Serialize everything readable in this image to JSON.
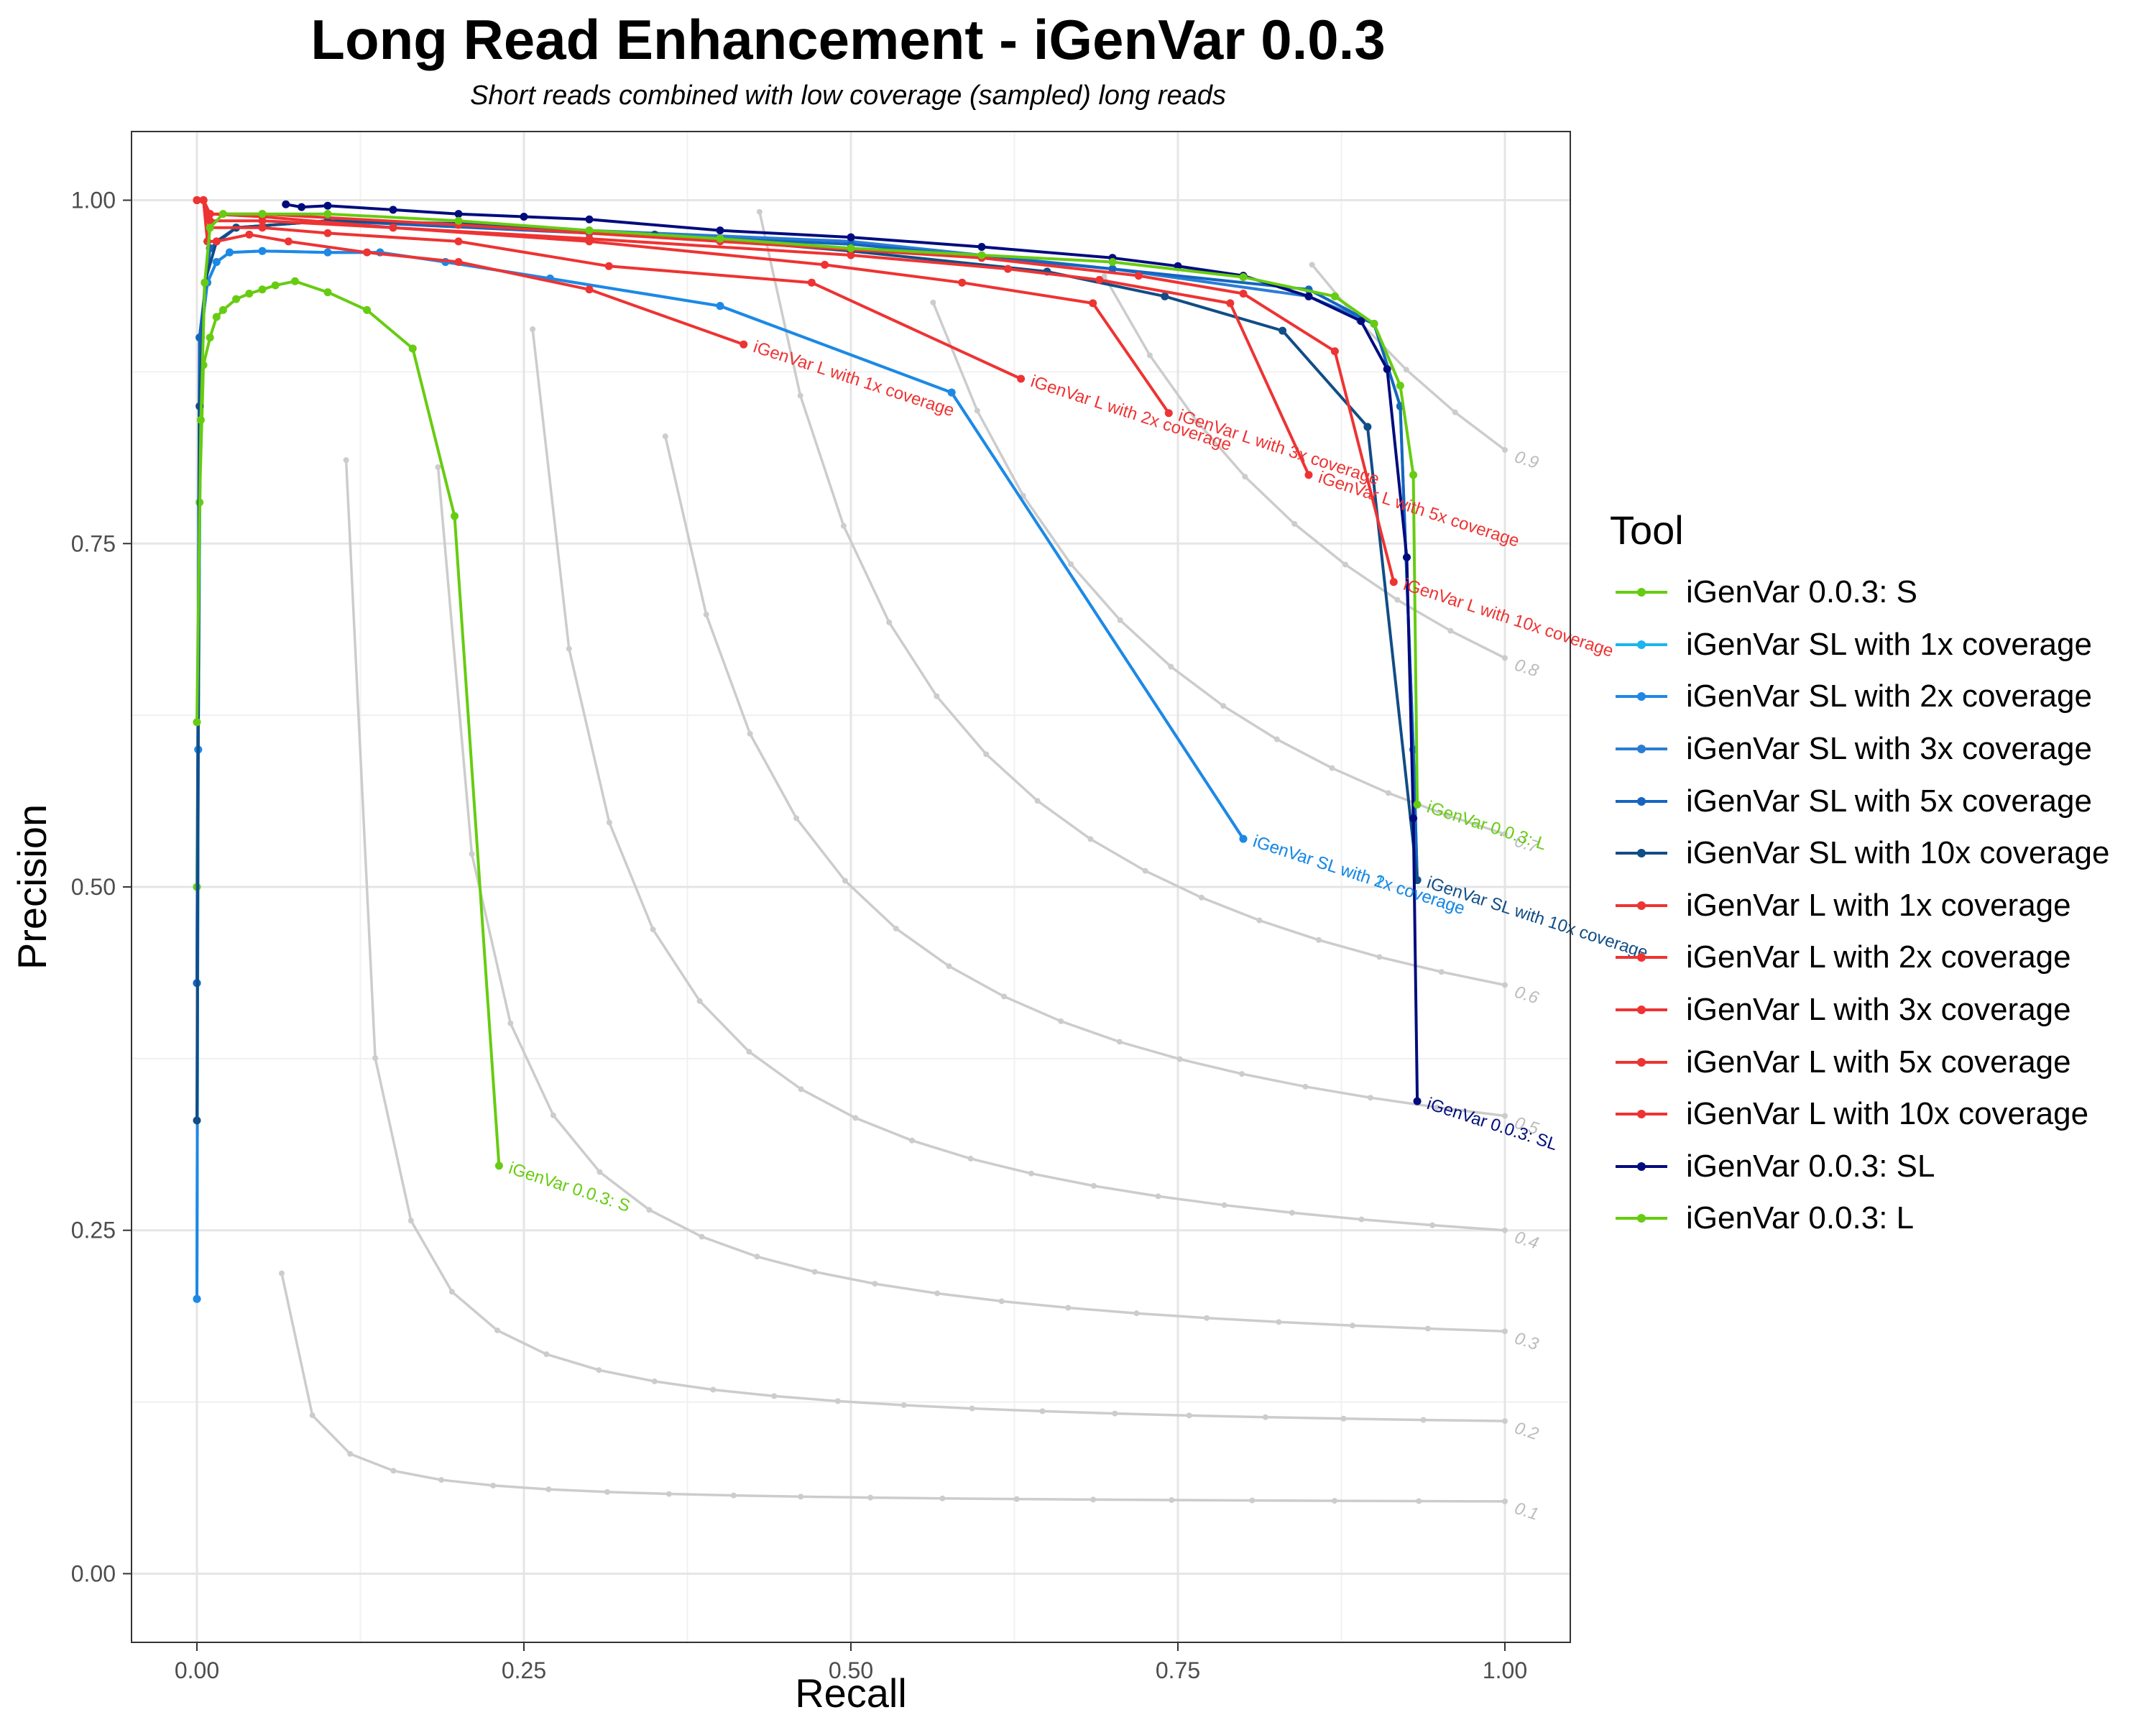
{
  "chart_data": {
    "type": "line",
    "title": "Long Read Enhancement - iGenVar 0.0.3",
    "subtitle": "Short reads combined with low coverage (sampled) long reads",
    "xlabel": "Recall",
    "ylabel": "Precision",
    "xlim": [
      -0.05,
      1.05
    ],
    "ylim": [
      -0.05,
      1.05
    ],
    "x_ticks": [
      "0.00",
      "0.25",
      "0.50",
      "0.75",
      "1.00"
    ],
    "y_ticks": [
      "0.00",
      "0.25",
      "0.50",
      "0.75",
      "1.00"
    ],
    "grid": true,
    "legend_title": "Tool",
    "legend_position": "right",
    "f_contours": [
      {
        "label": "0.1",
        "f": 0.1
      },
      {
        "label": "0.2",
        "f": 0.2
      },
      {
        "label": "0.3",
        "f": 0.3
      },
      {
        "label": "0.4",
        "f": 0.4
      },
      {
        "label": "0.5",
        "f": 0.5
      },
      {
        "label": "0.6",
        "f": 0.6
      },
      {
        "label": "0.7",
        "f": 0.7
      },
      {
        "label": "0.8",
        "f": 0.8
      },
      {
        "label": "0.9",
        "f": 0.9
      }
    ],
    "series": [
      {
        "name": "iGenVar 0.0.3: S",
        "color": "#66CC11",
        "end_label": "iGenVar 0.0.3: S",
        "points": [
          [
            0.0,
            0.5
          ],
          [
            0.002,
            0.78
          ],
          [
            0.005,
            0.88
          ],
          [
            0.01,
            0.9
          ],
          [
            0.015,
            0.915
          ],
          [
            0.02,
            0.92
          ],
          [
            0.03,
            0.928
          ],
          [
            0.04,
            0.932
          ],
          [
            0.05,
            0.935
          ],
          [
            0.06,
            0.938
          ],
          [
            0.075,
            0.941
          ],
          [
            0.1,
            0.933
          ],
          [
            0.13,
            0.92
          ],
          [
            0.165,
            0.892
          ],
          [
            0.197,
            0.77
          ],
          [
            0.231,
            0.297
          ]
        ]
      },
      {
        "name": "iGenVar SL with 1x coverage",
        "color": "#1BB5F0",
        "end_label": "iGenVar SL with 1x coverage",
        "points": [
          [
            0.0,
            0.2
          ],
          [
            0.001,
            0.6
          ],
          [
            0.003,
            0.9
          ],
          [
            0.008,
            0.94
          ],
          [
            0.015,
            0.955
          ],
          [
            0.025,
            0.962
          ],
          [
            0.05,
            0.963
          ],
          [
            0.1,
            0.962
          ],
          [
            0.14,
            0.962
          ],
          [
            0.19,
            0.955
          ],
          [
            0.27,
            0.943
          ],
          [
            0.4,
            0.923
          ],
          [
            0.577,
            0.86
          ],
          [
            0.8,
            0.535
          ]
        ]
      },
      {
        "name": "iGenVar SL with 2x coverage",
        "color": "#1E88E5",
        "end_label": "iGenVar SL with 2x coverage",
        "points": [
          [
            0.0,
            0.2
          ],
          [
            0.001,
            0.6
          ],
          [
            0.003,
            0.9
          ],
          [
            0.008,
            0.94
          ],
          [
            0.015,
            0.955
          ],
          [
            0.025,
            0.962
          ],
          [
            0.05,
            0.963
          ],
          [
            0.1,
            0.962
          ],
          [
            0.14,
            0.962
          ],
          [
            0.19,
            0.955
          ],
          [
            0.27,
            0.943
          ],
          [
            0.4,
            0.923
          ],
          [
            0.577,
            0.86
          ],
          [
            0.8,
            0.535
          ]
        ]
      },
      {
        "name": "iGenVar SL with 3x coverage",
        "color": "#2A7DD4",
        "end_label": "",
        "points": [
          [
            0.0,
            0.43
          ],
          [
            0.002,
            0.9
          ],
          [
            0.01,
            0.965
          ],
          [
            0.03,
            0.98
          ],
          [
            0.1,
            0.985
          ],
          [
            0.3,
            0.978
          ],
          [
            0.5,
            0.97
          ],
          [
            0.7,
            0.95
          ],
          [
            0.85,
            0.93
          ],
          [
            0.9,
            0.91
          ],
          [
            0.92,
            0.85
          ],
          [
            0.93,
            0.6
          ],
          [
            0.933,
            0.505
          ]
        ]
      },
      {
        "name": "iGenVar SL with 5x coverage",
        "color": "#1565C0",
        "end_label": "",
        "points": [
          [
            0.0,
            0.43
          ],
          [
            0.002,
            0.9
          ],
          [
            0.01,
            0.965
          ],
          [
            0.03,
            0.98
          ],
          [
            0.1,
            0.985
          ],
          [
            0.3,
            0.976
          ],
          [
            0.5,
            0.968
          ],
          [
            0.7,
            0.95
          ],
          [
            0.85,
            0.935
          ],
          [
            0.9,
            0.91
          ],
          [
            0.92,
            0.85
          ],
          [
            0.93,
            0.6
          ],
          [
            0.933,
            0.505
          ]
        ]
      },
      {
        "name": "iGenVar SL with 10x coverage",
        "color": "#114D86",
        "end_label": "iGenVar SL with 10x coverage",
        "points": [
          [
            0.0,
            0.33
          ],
          [
            0.002,
            0.85
          ],
          [
            0.006,
            0.94
          ],
          [
            0.015,
            0.97
          ],
          [
            0.03,
            0.98
          ],
          [
            0.1,
            0.985
          ],
          [
            0.2,
            0.983
          ],
          [
            0.35,
            0.975
          ],
          [
            0.5,
            0.963
          ],
          [
            0.65,
            0.948
          ],
          [
            0.74,
            0.93
          ],
          [
            0.83,
            0.905
          ],
          [
            0.895,
            0.835
          ],
          [
            0.933,
            0.505
          ]
        ]
      },
      {
        "name": "iGenVar L with 1x coverage",
        "color": "#EE3333",
        "end_label": "iGenVar L with 1x coverage",
        "points": [
          [
            0.0,
            1.0
          ],
          [
            0.005,
            1.0
          ],
          [
            0.008,
            0.97
          ],
          [
            0.015,
            0.97
          ],
          [
            0.04,
            0.975
          ],
          [
            0.07,
            0.97
          ],
          [
            0.13,
            0.962
          ],
          [
            0.2,
            0.955
          ],
          [
            0.3,
            0.935
          ],
          [
            0.418,
            0.895
          ]
        ]
      },
      {
        "name": "iGenVar L with 2x coverage",
        "color": "#EE3333",
        "end_label": "iGenVar L with 2x coverage",
        "points": [
          [
            0.0,
            1.0
          ],
          [
            0.005,
            1.0
          ],
          [
            0.01,
            0.98
          ],
          [
            0.05,
            0.98
          ],
          [
            0.1,
            0.976
          ],
          [
            0.2,
            0.97
          ],
          [
            0.315,
            0.952
          ],
          [
            0.47,
            0.94
          ],
          [
            0.63,
            0.87
          ]
        ]
      },
      {
        "name": "iGenVar L with 3x coverage",
        "color": "#EE3333",
        "end_label": "iGenVar L with 3x coverage",
        "points": [
          [
            0.0,
            1.0
          ],
          [
            0.005,
            1.0
          ],
          [
            0.01,
            0.985
          ],
          [
            0.05,
            0.985
          ],
          [
            0.15,
            0.98
          ],
          [
            0.3,
            0.97
          ],
          [
            0.48,
            0.953
          ],
          [
            0.585,
            0.94
          ],
          [
            0.685,
            0.925
          ],
          [
            0.743,
            0.845
          ]
        ]
      },
      {
        "name": "iGenVar L with 5x coverage",
        "color": "#EE3333",
        "end_label": "iGenVar L with 5x coverage",
        "points": [
          [
            0.0,
            1.0
          ],
          [
            0.005,
            1.0
          ],
          [
            0.01,
            0.99
          ],
          [
            0.05,
            0.988
          ],
          [
            0.15,
            0.98
          ],
          [
            0.3,
            0.972
          ],
          [
            0.5,
            0.96
          ],
          [
            0.62,
            0.95
          ],
          [
            0.69,
            0.942
          ],
          [
            0.79,
            0.925
          ],
          [
            0.85,
            0.8
          ]
        ]
      },
      {
        "name": "iGenVar L with 10x coverage",
        "color": "#EE3333",
        "end_label": "iGenVar L with 10x coverage",
        "points": [
          [
            0.0,
            1.0
          ],
          [
            0.005,
            1.0
          ],
          [
            0.01,
            0.99
          ],
          [
            0.05,
            0.99
          ],
          [
            0.2,
            0.982
          ],
          [
            0.4,
            0.97
          ],
          [
            0.6,
            0.958
          ],
          [
            0.72,
            0.945
          ],
          [
            0.8,
            0.932
          ],
          [
            0.87,
            0.89
          ],
          [
            0.915,
            0.722
          ]
        ]
      },
      {
        "name": "iGenVar 0.0.3: SL",
        "color": "#000C7D",
        "end_label": "iGenVar 0.0.3: SL",
        "points": [
          [
            0.068,
            0.997
          ],
          [
            0.08,
            0.995
          ],
          [
            0.1,
            0.996
          ],
          [
            0.15,
            0.993
          ],
          [
            0.2,
            0.99
          ],
          [
            0.25,
            0.988
          ],
          [
            0.3,
            0.986
          ],
          [
            0.4,
            0.978
          ],
          [
            0.5,
            0.973
          ],
          [
            0.6,
            0.966
          ],
          [
            0.7,
            0.958
          ],
          [
            0.75,
            0.952
          ],
          [
            0.8,
            0.945
          ],
          [
            0.85,
            0.93
          ],
          [
            0.89,
            0.912
          ],
          [
            0.91,
            0.877
          ],
          [
            0.925,
            0.74
          ],
          [
            0.93,
            0.55
          ],
          [
            0.933,
            0.344
          ]
        ]
      },
      {
        "name": "iGenVar 0.0.3: L",
        "color": "#66CC11",
        "end_label": "iGenVar 0.0.3: L",
        "points": [
          [
            0.0,
            0.62
          ],
          [
            0.003,
            0.84
          ],
          [
            0.006,
            0.94
          ],
          [
            0.01,
            0.98
          ],
          [
            0.02,
            0.99
          ],
          [
            0.05,
            0.99
          ],
          [
            0.1,
            0.99
          ],
          [
            0.2,
            0.985
          ],
          [
            0.3,
            0.978
          ],
          [
            0.4,
            0.972
          ],
          [
            0.5,
            0.965
          ],
          [
            0.6,
            0.96
          ],
          [
            0.7,
            0.955
          ],
          [
            0.8,
            0.944
          ],
          [
            0.87,
            0.93
          ],
          [
            0.9,
            0.91
          ],
          [
            0.92,
            0.865
          ],
          [
            0.93,
            0.8
          ],
          [
            0.933,
            0.56
          ]
        ]
      }
    ]
  }
}
